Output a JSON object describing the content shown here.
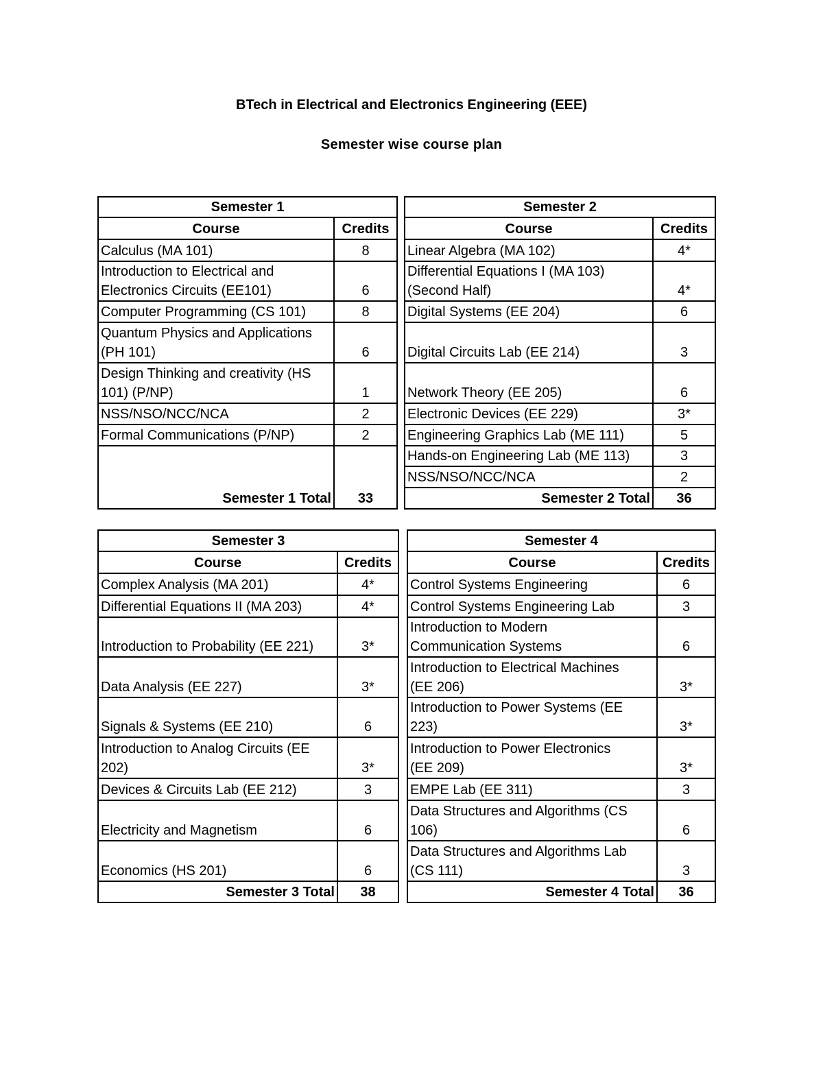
{
  "title": "BTech in Electrical and Electronics Engineering (EEE)",
  "subtitle": "Semester wise course plan",
  "col_course": "Course",
  "col_credits": "Credits",
  "semesters": [
    {
      "name": "Semester 1",
      "total_label": "Semester 1 Total",
      "total": "33",
      "courses": [
        {
          "course": "Calculus (MA 101)",
          "credits": "8"
        },
        {
          "course": "Introduction to Electrical and\nElectronics Circuits (EE101)",
          "credits": "6"
        },
        {
          "course": "Computer Programming (CS 101)",
          "credits": "8"
        },
        {
          "course": "Quantum Physics and Applications\n(PH 101)",
          "credits": "6"
        },
        {
          "course": "Design Thinking and creativity (HS\n101) (P/NP)",
          "credits": "1"
        },
        {
          "course": "NSS/NSO/NCC/NCA",
          "credits": "2"
        },
        {
          "course": "Formal Communications (P/NP)",
          "credits": "2"
        }
      ]
    },
    {
      "name": "Semester 2",
      "total_label": "Semester 2 Total",
      "total": "36",
      "courses": [
        {
          "course": "Linear Algebra (MA 102)",
          "credits": "4*"
        },
        {
          "course": "Differential Equations I (MA 103)\n(Second Half)",
          "credits": "4*"
        },
        {
          "course": "Digital Systems (EE 204)",
          "credits": "6"
        },
        {
          "course": "Digital Circuits Lab (EE 214)",
          "credits": "3"
        },
        {
          "course": "Network Theory (EE 205)",
          "credits": "6"
        },
        {
          "course": "Electronic Devices (EE 229)",
          "credits": "3*"
        },
        {
          "course": "Engineering Graphics Lab (ME 111)",
          "credits": "5"
        },
        {
          "course": "Hands-on Engineering Lab (ME 113)",
          "credits": "3"
        },
        {
          "course": "NSS/NSO/NCC/NCA",
          "credits": "2"
        }
      ]
    },
    {
      "name": "Semester 3",
      "total_label": "Semester 3 Total",
      "total": "38",
      "courses": [
        {
          "course": "Complex Analysis (MA 201)",
          "credits": "4*"
        },
        {
          "course": "Differential Equations II (MA 203)",
          "credits": "4*"
        },
        {
          "course": "Introduction to Probability (EE 221)",
          "credits": "3*"
        },
        {
          "course": "Data Analysis (EE 227)",
          "credits": "3*"
        },
        {
          "course": "Signals & Systems (EE 210)",
          "credits": "6"
        },
        {
          "course": "Introduction to Analog Circuits (EE\n202)",
          "credits": "3*"
        },
        {
          "course": "Devices & Circuits Lab (EE 212)",
          "credits": "3"
        },
        {
          "course": "Electricity and Magnetism",
          "credits": "6"
        },
        {
          "course": "Economics (HS 201)",
          "credits": "6"
        }
      ]
    },
    {
      "name": "Semester 4",
      "total_label": "Semester 4 Total",
      "total": "36",
      "courses": [
        {
          "course": "Control Systems Engineering",
          "credits": "6"
        },
        {
          "course": "Control Systems Engineering Lab",
          "credits": "3"
        },
        {
          "course": "Introduction to Modern\nCommunication Systems",
          "credits": "6"
        },
        {
          "course": "Introduction to Electrical Machines\n(EE 206)",
          "credits": "3*"
        },
        {
          "course": "Introduction to Power Systems (EE\n223)",
          "credits": "3*"
        },
        {
          "course": "Introduction to Power Electronics\n(EE 209)",
          "credits": "3*"
        },
        {
          "course": "EMPE Lab (EE 311)",
          "credits": "3"
        },
        {
          "course": "Data Structures and Algorithms (CS\n106)",
          "credits": "6"
        },
        {
          "course": "Data Structures and Algorithms Lab\n(CS 111)",
          "credits": "3"
        }
      ]
    }
  ]
}
